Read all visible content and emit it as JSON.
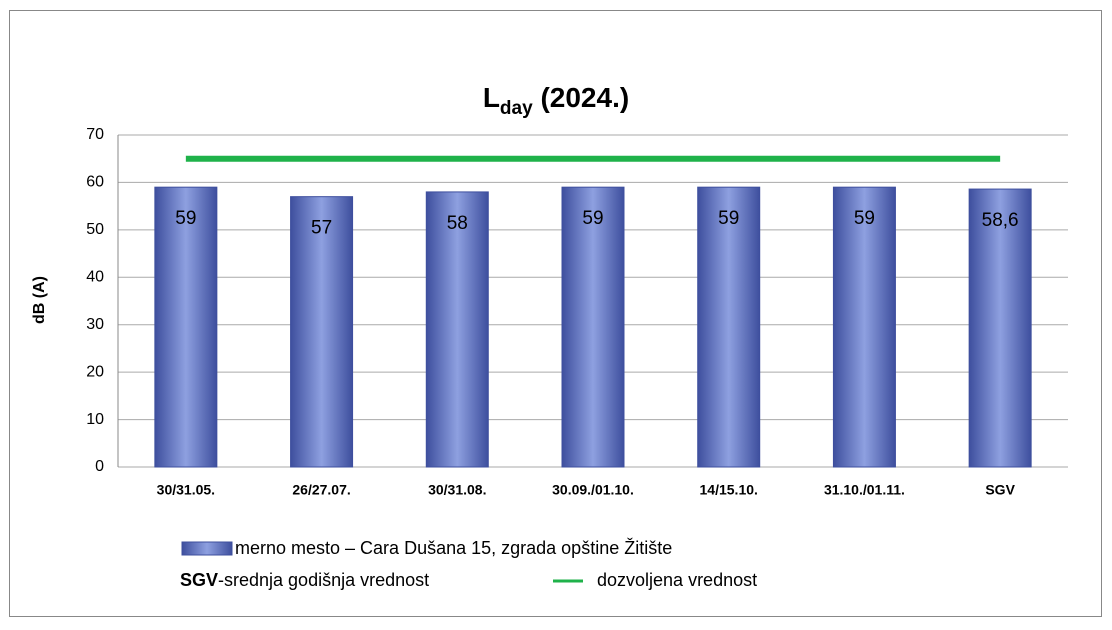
{
  "chart_data": {
    "type": "bar",
    "title": {
      "main": "L",
      "sub": "day",
      "rest": " (2024.)"
    },
    "y_label": "dB (A)",
    "categories": [
      "30/31.05.",
      "26/27.07.",
      "30/31.08.",
      "30.09./01.10.",
      "14/15.10.",
      "31.10./01.11.",
      "SGV"
    ],
    "series": [
      {
        "name": "merno mesto – Cara Dušana 15, zgrada opštine Žitište",
        "type": "bar",
        "color": "#5a6fc0",
        "values": [
          59,
          57,
          58,
          59,
          59,
          59,
          58.6
        ],
        "value_labels": [
          "59",
          "57",
          "58",
          "59",
          "59",
          "59",
          "58,6"
        ]
      },
      {
        "name": "dozvoljena vrednost",
        "type": "line",
        "color": "#1fb24a",
        "values": [
          65,
          65,
          65,
          65,
          65,
          65,
          65
        ]
      }
    ],
    "note": {
      "term": "SGV",
      "text": "-srednja godišnja vrednost"
    },
    "ylim": [
      0,
      70
    ],
    "yticks": [
      0,
      10,
      20,
      30,
      40,
      50,
      60,
      70
    ],
    "grid": true
  }
}
